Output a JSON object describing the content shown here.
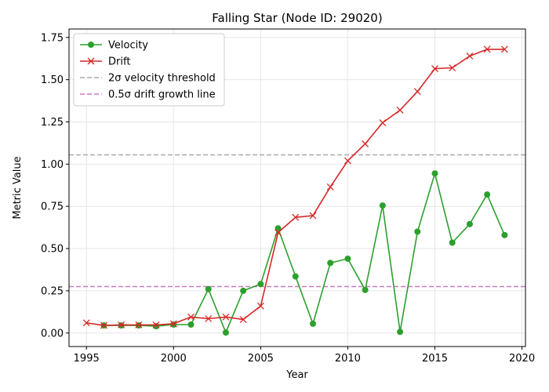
{
  "chart_data": {
    "type": "line",
    "title": "Falling Star (Node ID: 29020)",
    "xlabel": "Year",
    "ylabel": "Metric Value",
    "xlim": [
      1994,
      2020.2
    ],
    "ylim": [
      -0.08,
      1.8
    ],
    "x_ticks": [
      1995,
      2000,
      2005,
      2010,
      2015,
      2020
    ],
    "y_ticks": [
      0.0,
      0.25,
      0.5,
      0.75,
      1.0,
      1.25,
      1.5,
      1.75
    ],
    "grid": true,
    "legend_position": "top-left",
    "series": [
      {
        "name": "Velocity",
        "color": "#2ca02c",
        "marker": "circle",
        "x": [
          1996,
          1997,
          1998,
          1999,
          2000,
          2001,
          2002,
          2003,
          2004,
          2005,
          2006,
          2007,
          2008,
          2009,
          2010,
          2011,
          2012,
          2013,
          2014,
          2015,
          2016,
          2017,
          2018,
          2019
        ],
        "y": [
          0.045,
          0.045,
          0.045,
          0.04,
          0.05,
          0.05,
          0.26,
          0.003,
          0.25,
          0.29,
          0.62,
          0.335,
          0.055,
          0.415,
          0.44,
          0.255,
          0.755,
          0.007,
          0.6,
          0.945,
          0.535,
          0.645,
          0.82,
          0.58
        ]
      },
      {
        "name": "Drift",
        "color": "#d62728",
        "marker": "x",
        "x": [
          1995,
          1996,
          1997,
          1998,
          1999,
          2000,
          2001,
          2002,
          2003,
          2004,
          2005,
          2006,
          2007,
          2008,
          2009,
          2010,
          2011,
          2012,
          2013,
          2014,
          2015,
          2016,
          2017,
          2018,
          2019
        ],
        "y": [
          0.06,
          0.045,
          0.048,
          0.048,
          0.048,
          0.055,
          0.095,
          0.085,
          0.095,
          0.08,
          0.16,
          0.595,
          0.685,
          0.695,
          0.865,
          1.02,
          1.12,
          1.245,
          1.32,
          1.43,
          1.565,
          1.57,
          1.64,
          1.68,
          1.68
        ]
      }
    ],
    "reference_lines": [
      {
        "name": "2σ velocity threshold",
        "value": 1.055,
        "color": "#aaaaaa",
        "style": "dashed"
      },
      {
        "name": "0.5σ drift growth line",
        "value": 0.275,
        "color": "#c77cbf",
        "style": "dashed"
      }
    ]
  }
}
